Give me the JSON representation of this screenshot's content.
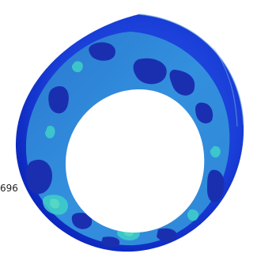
{
  "viewport": {
    "edge_label": "696"
  },
  "colors": {
    "background": "#ffffff",
    "outer_shell": "#1a3fd8",
    "outer_shell_dark": "#0a23b8",
    "inner_surface": "#2f86d8",
    "contour_low": "#1a2fb0",
    "contour_high": "#3fd0c8",
    "rim_highlight": "#7fb8e8"
  }
}
